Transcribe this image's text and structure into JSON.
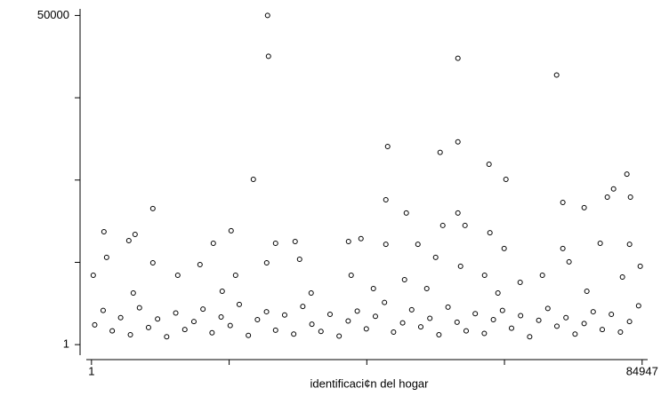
{
  "chart_data": {
    "type": "scatter",
    "x_label": "identificaci¢n del hogar",
    "xlim": [
      -800,
      85800
    ],
    "xticks": [
      1,
      84947
    ],
    "xticks_minor": [
      21237,
      42474,
      63710
    ],
    "ylim": [
      -1600,
      51000
    ],
    "yticks": [
      1,
      50000
    ],
    "yticks_minor": [
      12500,
      25000,
      37500
    ],
    "series": [
      {
        "color": "#000000",
        "x": [
          27166,
          27304,
          56527,
          71756,
          45690,
          56527,
          53783,
          61330,
          63937,
          24970,
          82596,
          80539,
          79578,
          83145,
          72714,
          76007,
          45413,
          48569,
          56527,
          9468,
          1922,
          6724,
          5763,
          21541,
          18797,
          54195,
          57625,
          61467,
          50355,
          28400,
          31419,
          39652,
          41573,
          45413,
          63662,
          78480,
          83007,
          72714,
          2333,
          9468,
          16740,
          27030,
          32106,
          53097,
          56939,
          73674,
          275,
          13310,
          22228,
          40064,
          48294,
          60644,
          66132,
          69562,
          81910,
          84656,
          6450,
          20169,
          33889,
          43492,
          51725,
          62701,
          76421,
          500,
          1800,
          3200,
          4500,
          6000,
          7400,
          8800,
          10200,
          11600,
          13000,
          14400,
          15800,
          17200,
          18600,
          20000,
          21400,
          22800,
          24200,
          25600,
          27000,
          28400,
          29800,
          31200,
          32600,
          34000,
          35400,
          36800,
          38200,
          39600,
          41000,
          42400,
          43800,
          45200,
          46600,
          48000,
          49400,
          50800,
          52200,
          53600,
          55000,
          56400,
          57800,
          59200,
          60600,
          62000,
          63400,
          64800,
          66200,
          67600,
          69000,
          70400,
          71800,
          73200,
          74600,
          76000,
          77400,
          78800,
          80200,
          81600,
          83000,
          84400
        ],
        "values": [
          50000,
          43800,
          43500,
          40950,
          30100,
          30800,
          29200,
          27400,
          25100,
          25100,
          25900,
          23650,
          22400,
          22400,
          21600,
          20800,
          22000,
          20000,
          20000,
          20670,
          17150,
          16750,
          15800,
          17300,
          15400,
          18100,
          18100,
          17000,
          15250,
          15400,
          15670,
          15670,
          16100,
          15250,
          14600,
          15400,
          15250,
          14600,
          13250,
          12430,
          12160,
          12430,
          12970,
          13250,
          11900,
          12570,
          10540,
          10540,
          10540,
          10540,
          9860,
          10540,
          9460,
          10540,
          10270,
          11900,
          7840,
          8110,
          7840,
          8510,
          8510,
          7840,
          8110,
          3000,
          5200,
          2100,
          4100,
          1500,
          5600,
          2600,
          3900,
          1200,
          4800,
          2300,
          3500,
          5400,
          1800,
          4200,
          2900,
          6100,
          1400,
          3800,
          5000,
          2200,
          4500,
          1600,
          5800,
          3100,
          2000,
          4600,
          1300,
          3600,
          5100,
          2400,
          4300,
          6400,
          1900,
          3300,
          5300,
          2700,
          4000,
          1500,
          5700,
          3400,
          2100,
          4700,
          1700,
          3800,
          5200,
          2500,
          4400,
          1200,
          3700,
          5500,
          2800,
          4100,
          1600,
          3200,
          5000,
          2300,
          4600,
          1900,
          3500,
          5900
        ]
      }
    ]
  }
}
